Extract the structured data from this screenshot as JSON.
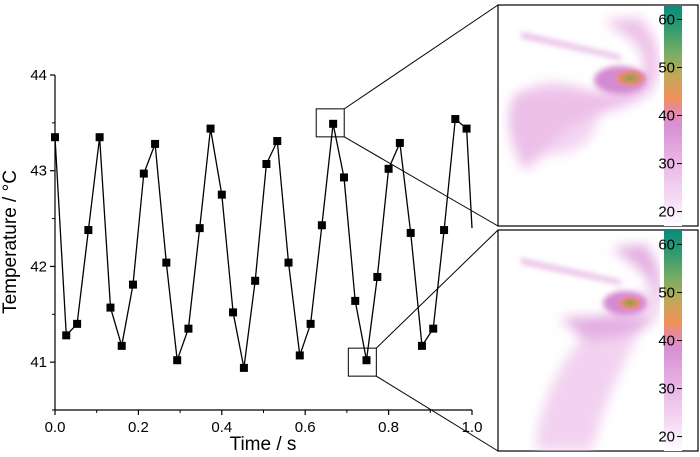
{
  "chart_data": {
    "type": "line",
    "title": "",
    "xlabel": "Time / s",
    "ylabel": "Temperature / °C",
    "xlim": [
      0.0,
      1.0
    ],
    "ylim": [
      40.5,
      44.0
    ],
    "xticks": [
      "0.0",
      "0.2",
      "0.4",
      "0.6",
      "0.8",
      "1.0"
    ],
    "yticks": [
      "41",
      "42",
      "43",
      "44"
    ],
    "series": [
      {
        "marker": "filled-square",
        "color": "#000000",
        "x": [
          0.0,
          0.027,
          0.053,
          0.08,
          0.107,
          0.133,
          0.16,
          0.187,
          0.213,
          0.24,
          0.267,
          0.293,
          0.32,
          0.347,
          0.373,
          0.4,
          0.427,
          0.453,
          0.48,
          0.507,
          0.533,
          0.56,
          0.587,
          0.613,
          0.64,
          0.667,
          0.693,
          0.72,
          0.747,
          0.773,
          0.8,
          0.827,
          0.853,
          0.88,
          0.907,
          0.933,
          0.96,
          0.987,
          1.0
        ],
        "y": [
          43.35,
          41.28,
          41.4,
          42.38,
          43.35,
          41.57,
          41.17,
          41.81,
          42.97,
          43.28,
          42.04,
          41.02,
          41.35,
          42.4,
          43.44,
          42.75,
          41.52,
          40.94,
          41.85,
          43.07,
          43.31,
          42.04,
          41.07,
          41.4,
          42.43,
          43.49,
          42.93,
          41.64,
          41.02,
          41.89,
          43.02,
          43.29,
          42.35,
          41.17,
          41.35,
          42.38,
          43.54,
          43.44,
          42.4
        ]
      }
    ],
    "zoom_boxes": [
      {
        "x_center": 0.66,
        "y_center": 43.5
      },
      {
        "x_center": 0.737,
        "y_center": 41.0
      }
    ],
    "heatmaps": [
      {
        "colorbar_ticks": [
          "20",
          "30",
          "40",
          "50",
          "60"
        ],
        "colorbar_range": [
          17,
          63
        ]
      },
      {
        "colorbar_ticks": [
          "20",
          "30",
          "40",
          "50",
          "60"
        ],
        "colorbar_range": [
          17,
          63
        ]
      }
    ],
    "colormap": [
      "#ffffff",
      "#f6d8f4",
      "#e9b0e6",
      "#d98bd8",
      "#c36fc4",
      "#e07ea0",
      "#f08a5d",
      "#8fae55",
      "#2f9a6f",
      "#0b8a78"
    ]
  }
}
